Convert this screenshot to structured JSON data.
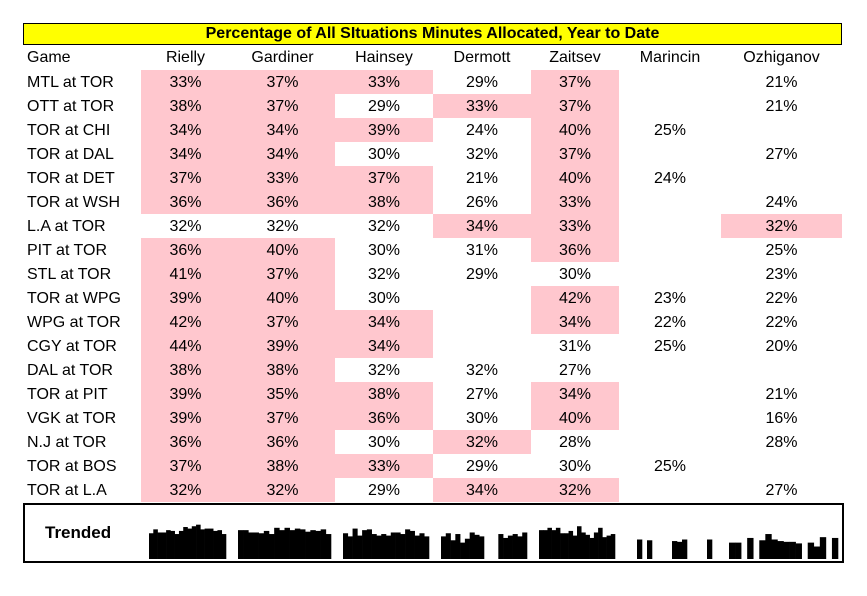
{
  "title": "Percentage of All SItuations Minutes Allocated, Year to Date",
  "colors": {
    "title_bg": "#ffff00",
    "highlight": "#ffc7ce",
    "bars": "#000000"
  },
  "trended_label": "Trended",
  "chart_data": {
    "type": "table",
    "title": "Percentage of All SItuations Minutes Allocated, Year to Date",
    "columns": [
      "Game",
      "Rielly",
      "Gardiner",
      "Hainsey",
      "Dermott",
      "Zaitsev",
      "Marincin",
      "Ozhiganov"
    ],
    "rows": [
      {
        "game": "MTL at TOR",
        "values": [
          "33%",
          "37%",
          "33%",
          "29%",
          "37%",
          "",
          "21%"
        ],
        "highlight": [
          true,
          true,
          true,
          false,
          true,
          false,
          false
        ]
      },
      {
        "game": "OTT at TOR",
        "values": [
          "38%",
          "37%",
          "29%",
          "33%",
          "37%",
          "",
          "21%"
        ],
        "highlight": [
          true,
          true,
          false,
          true,
          true,
          false,
          false
        ]
      },
      {
        "game": "TOR at CHI",
        "values": [
          "34%",
          "34%",
          "39%",
          "24%",
          "40%",
          "25%",
          ""
        ],
        "highlight": [
          true,
          true,
          true,
          false,
          true,
          false,
          false
        ]
      },
      {
        "game": "TOR at DAL",
        "values": [
          "34%",
          "34%",
          "30%",
          "32%",
          "37%",
          "",
          "27%"
        ],
        "highlight": [
          true,
          true,
          false,
          false,
          true,
          false,
          false
        ]
      },
      {
        "game": "TOR at DET",
        "values": [
          "37%",
          "33%",
          "37%",
          "21%",
          "40%",
          "24%",
          ""
        ],
        "highlight": [
          true,
          true,
          true,
          false,
          true,
          false,
          false
        ]
      },
      {
        "game": "TOR at WSH",
        "values": [
          "36%",
          "36%",
          "38%",
          "26%",
          "33%",
          "",
          "24%"
        ],
        "highlight": [
          true,
          true,
          true,
          false,
          true,
          false,
          false
        ]
      },
      {
        "game": "L.A at TOR",
        "values": [
          "32%",
          "32%",
          "32%",
          "34%",
          "33%",
          "",
          "32%"
        ],
        "highlight": [
          false,
          false,
          false,
          true,
          true,
          false,
          true
        ]
      },
      {
        "game": "PIT at TOR",
        "values": [
          "36%",
          "40%",
          "30%",
          "31%",
          "36%",
          "",
          "25%"
        ],
        "highlight": [
          true,
          true,
          false,
          false,
          true,
          false,
          false
        ]
      },
      {
        "game": "STL at TOR",
        "values": [
          "41%",
          "37%",
          "32%",
          "29%",
          "30%",
          "",
          "23%"
        ],
        "highlight": [
          true,
          true,
          false,
          false,
          false,
          false,
          false
        ]
      },
      {
        "game": "TOR at WPG",
        "values": [
          "39%",
          "40%",
          "30%",
          "",
          "42%",
          "23%",
          "22%"
        ],
        "highlight": [
          true,
          true,
          false,
          false,
          true,
          false,
          false
        ]
      },
      {
        "game": "WPG at TOR",
        "values": [
          "42%",
          "37%",
          "34%",
          "",
          "34%",
          "22%",
          "22%"
        ],
        "highlight": [
          true,
          true,
          true,
          false,
          true,
          false,
          false
        ]
      },
      {
        "game": "CGY at TOR",
        "values": [
          "44%",
          "39%",
          "34%",
          "",
          "31%",
          "25%",
          "20%"
        ],
        "highlight": [
          true,
          true,
          true,
          false,
          false,
          false,
          false
        ]
      },
      {
        "game": "DAL at TOR",
        "values": [
          "38%",
          "38%",
          "32%",
          "32%",
          "27%",
          "",
          ""
        ],
        "highlight": [
          true,
          true,
          false,
          false,
          false,
          false,
          false
        ]
      },
      {
        "game": "TOR at PIT",
        "values": [
          "39%",
          "35%",
          "38%",
          "27%",
          "34%",
          "",
          "21%"
        ],
        "highlight": [
          true,
          true,
          true,
          false,
          true,
          false,
          false
        ]
      },
      {
        "game": "VGK at TOR",
        "values": [
          "39%",
          "37%",
          "36%",
          "30%",
          "40%",
          "",
          "16%"
        ],
        "highlight": [
          true,
          true,
          true,
          false,
          true,
          false,
          false
        ]
      },
      {
        "game": "N.J at TOR",
        "values": [
          "36%",
          "36%",
          "30%",
          "32%",
          "28%",
          "",
          "28%"
        ],
        "highlight": [
          true,
          true,
          false,
          true,
          false,
          false,
          false
        ]
      },
      {
        "game": "TOR at BOS",
        "values": [
          "37%",
          "38%",
          "33%",
          "29%",
          "30%",
          "25%",
          ""
        ],
        "highlight": [
          true,
          true,
          true,
          false,
          false,
          false,
          false
        ]
      },
      {
        "game": "TOR at L.A",
        "values": [
          "32%",
          "32%",
          "29%",
          "34%",
          "32%",
          "",
          "27%"
        ],
        "highlight": [
          true,
          true,
          false,
          true,
          true,
          false,
          false
        ]
      }
    ]
  }
}
